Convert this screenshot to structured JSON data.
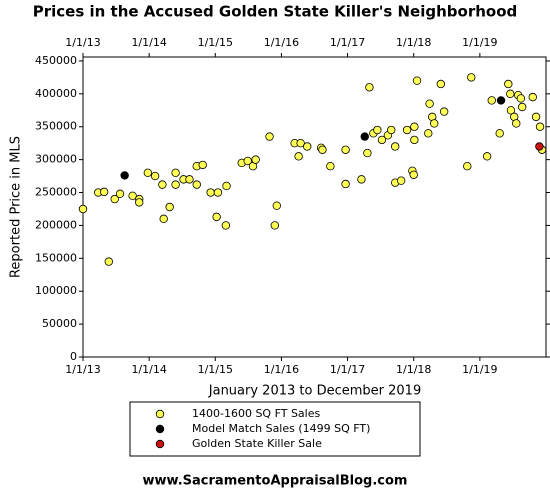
{
  "chart_data": {
    "type": "scatter",
    "title": "Prices in the Accused Golden State Killer's Neighborhood",
    "x_label": "January 2013 to December 2019",
    "y_label": "Reported Price in MLS",
    "footer": "www.SacramentoAppraisalBlog.com",
    "xlim": [
      2013,
      2020
    ],
    "xticks": [
      {
        "value": 2013,
        "label": "1/1/13"
      },
      {
        "value": 2014,
        "label": "1/1/14"
      },
      {
        "value": 2015,
        "label": "1/1/15"
      },
      {
        "value": 2016,
        "label": "1/1/16"
      },
      {
        "value": 2017,
        "label": "1/1/17"
      },
      {
        "value": 2018,
        "label": "1/1/18"
      },
      {
        "value": 2019,
        "label": "1/1/19"
      }
    ],
    "ylim": [
      0,
      456000
    ],
    "yticks": [
      0,
      50000,
      100000,
      150000,
      200000,
      250000,
      300000,
      350000,
      400000,
      450000
    ],
    "grid": false,
    "series": [
      {
        "name": "1400-1600 SQ FT Sales",
        "color": "#ffff55",
        "x": [
          2013.0,
          2013.23,
          2013.32,
          2013.39,
          2013.48,
          2013.56,
          2013.75,
          2013.85,
          2013.85,
          2013.98,
          2014.09,
          2014.22,
          2014.31,
          2014.2,
          2014.4,
          2014.4,
          2014.52,
          2014.61,
          2014.72,
          2014.81,
          2014.72,
          2014.93,
          2015.04,
          2015.02,
          2015.16,
          2015.17,
          2015.4,
          2015.49,
          2015.57,
          2015.61,
          2015.82,
          2015.9,
          2015.93,
          2016.2,
          2016.29,
          2016.26,
          2016.39,
          2016.6,
          2016.62,
          2016.74,
          2016.97,
          2016.97,
          2017.21,
          2017.3,
          2017.33,
          2017.39,
          2017.45,
          2017.52,
          2017.61,
          2017.66,
          2017.72,
          2017.81,
          2017.72,
          2017.9,
          2017.98,
          2018.0,
          2018.01,
          2018.01,
          2018.05,
          2018.22,
          2018.24,
          2018.28,
          2018.31,
          2018.41,
          2018.46,
          2018.81,
          2018.87,
          2019.11,
          2019.18,
          2019.3,
          2019.43,
          2019.46,
          2019.47,
          2019.52,
          2019.55,
          2019.58,
          2019.62,
          2019.64,
          2019.8,
          2019.85,
          2019.91,
          2019.94
        ],
        "values": [
          225000,
          250000,
          251000,
          145000,
          240000,
          248000,
          245000,
          240000,
          235000,
          280000,
          275000,
          210000,
          228000,
          262000,
          262000,
          280000,
          270000,
          270000,
          290000,
          292000,
          262000,
          250000,
          250000,
          213000,
          200000,
          260000,
          295000,
          298000,
          290000,
          300000,
          335000,
          200000,
          230000,
          325000,
          325000,
          305000,
          320000,
          318000,
          315000,
          290000,
          315000,
          263000,
          270000,
          310000,
          410000,
          340000,
          345000,
          330000,
          337000,
          345000,
          265000,
          268000,
          320000,
          345000,
          283000,
          277000,
          350000,
          330000,
          420000,
          340000,
          385000,
          365000,
          355000,
          415000,
          373000,
          290000,
          425000,
          305000,
          390000,
          340000,
          415000,
          400000,
          375000,
          365000,
          355000,
          398000,
          393000,
          380000,
          395000,
          365000,
          350000,
          315000
        ]
      },
      {
        "name": "Model Match Sales (1499 SQ FT)",
        "color": "#000000",
        "x": [
          2013.63,
          2017.26,
          2019.32
        ],
        "values": [
          276000,
          335000,
          390000
        ]
      },
      {
        "name": "Golden State Killer Sale",
        "color": "#cc1111",
        "x": [
          2019.9
        ],
        "values": [
          320000
        ]
      }
    ]
  }
}
